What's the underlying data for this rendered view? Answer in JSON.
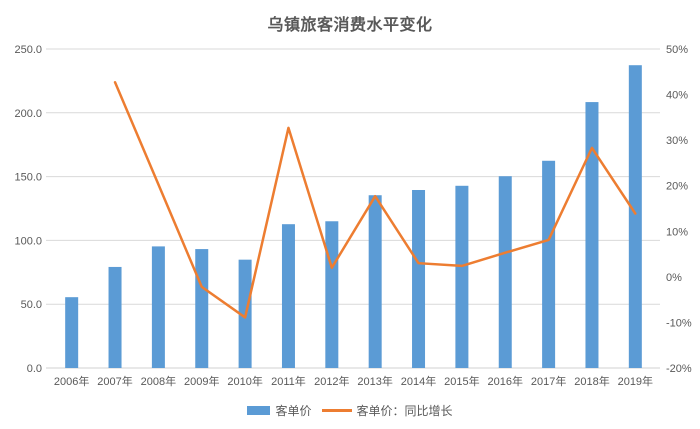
{
  "chart_data": {
    "type": "bar",
    "subtype": "combo-bar-line",
    "title": "乌镇旅客消费水平变化",
    "categories": [
      "2006年",
      "2007年",
      "2008年",
      "2009年",
      "2010年",
      "2011年",
      "2012年",
      "2013年",
      "2014年",
      "2015年",
      "2016年",
      "2017年",
      "2018年",
      "2019年"
    ],
    "series": [
      {
        "name": "客单价",
        "render": "bar",
        "axis": "left",
        "color": "#5B9BD5",
        "values": [
          55.5,
          79.2,
          95.3,
          93.2,
          84.9,
          112.7,
          115.0,
          135.4,
          139.5,
          142.8,
          150.3,
          162.4,
          208.4,
          237.3
        ]
      },
      {
        "name": "客单价：同比增长",
        "render": "line",
        "axis": "right",
        "color": "#ED7D31",
        "values_percent": [
          null,
          42.7,
          20.3,
          -2.2,
          -8.9,
          32.7,
          2.0,
          17.7,
          3.0,
          2.4,
          5.3,
          8.1,
          28.3,
          13.9
        ]
      }
    ],
    "left_axis": {
      "min": 0,
      "max": 250,
      "step": 50,
      "tick_labels": [
        "0.0",
        "50.0",
        "100.0",
        "150.0",
        "200.0",
        "250.0"
      ]
    },
    "right_axis": {
      "min": -20,
      "max": 50,
      "step": 10,
      "tick_labels": [
        "-20%",
        "-10%",
        "0%",
        "10%",
        "20%",
        "30%",
        "40%",
        "50%"
      ]
    },
    "grid": true,
    "legend_position": "bottom",
    "colors": {
      "grid": "#D9D9D9",
      "axis_line": "#D0D0D0",
      "axis_text": "#595959",
      "title_text": "#595959"
    }
  }
}
